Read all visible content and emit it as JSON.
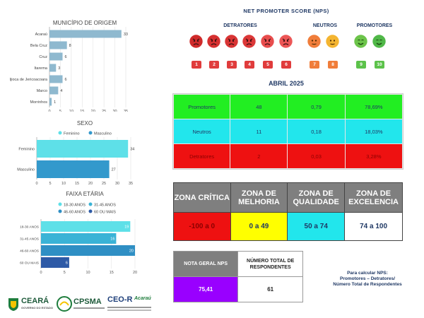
{
  "charts": {
    "municipio": {
      "title": "MUNICÍPIO DE ORIGEM",
      "categories": [
        "Acaraú",
        "Bela Cruz",
        "Cruz",
        "Itarema",
        "Ijioca de Jericoacoara",
        "Marco",
        "Morrinhos"
      ],
      "values": [
        33,
        8,
        6,
        3,
        6,
        4,
        1
      ],
      "ticks": [
        "0",
        "5",
        "10",
        "15",
        "20",
        "25",
        "30",
        "35"
      ],
      "color": "#8fb9cf"
    },
    "sexo": {
      "title": "SEXO",
      "legend": [
        {
          "label": "Feminino",
          "color": "#5ee0e8"
        },
        {
          "label": "Masculino",
          "color": "#3399cc"
        }
      ],
      "categories": [
        "Feminino",
        "Masculino"
      ],
      "values": [
        34,
        27
      ],
      "ticks": [
        "0",
        "5",
        "10",
        "15",
        "20",
        "25",
        "30",
        "35"
      ]
    },
    "faixa": {
      "title": "FAIXA ETÁRIA",
      "legend": [
        {
          "label": "18-30 ANOS",
          "color": "#5ee0e8"
        },
        {
          "label": "31-45 ANOS",
          "color": "#3ab3d6"
        },
        {
          "label": "46-60 ANOS",
          "color": "#2f8fc4"
        },
        {
          "label": "60 OU MAIS",
          "color": "#2e5aa6"
        }
      ],
      "categories": [
        "18-30 ANOS",
        "31-45 ANOS",
        "46-60 ANOS",
        "60 OU MAIS"
      ],
      "values": [
        19,
        16,
        20,
        6
      ],
      "ticks": [
        "0",
        "5",
        "10",
        "15",
        "20"
      ]
    }
  },
  "chart_data": [
    {
      "type": "bar",
      "title": "MUNICÍPIO DE ORIGEM",
      "categories": [
        "Acaraú",
        "Bela Cruz",
        "Cruz",
        "Itarema",
        "Ijioca de Jericoacoara",
        "Marco",
        "Morrinhos"
      ],
      "values": [
        33,
        8,
        6,
        3,
        6,
        4,
        1
      ],
      "xlim": [
        0,
        35
      ],
      "orientation": "horizontal"
    },
    {
      "type": "bar",
      "title": "SEXO",
      "categories": [
        "Feminino",
        "Masculino"
      ],
      "values": [
        34,
        27
      ],
      "xlim": [
        0,
        35
      ],
      "orientation": "horizontal",
      "legend": "top"
    },
    {
      "type": "bar",
      "title": "FAIXA ETÁRIA",
      "categories": [
        "18-30 ANOS",
        "31-45 ANOS",
        "46-60 ANOS",
        "60 OU MAIS"
      ],
      "values": [
        19,
        16,
        20,
        6
      ],
      "xlim": [
        0,
        20
      ],
      "orientation": "horizontal",
      "legend": "top"
    }
  ],
  "nps": {
    "title": "NET PROMOTER SCORE (NPS)",
    "groups": {
      "detratores": "DETRATORES",
      "neutros": "NEUTROS",
      "promotores": "PROMOTORES"
    },
    "scores": [
      "1",
      "2",
      "3",
      "4",
      "5",
      "6",
      "7",
      "8",
      "9",
      "10"
    ],
    "period": "ABRIL 2025",
    "colors": {
      "detrator": "#e03c3c",
      "neutro": "#f07d3a",
      "promotor": "#5cc24a"
    }
  },
  "summary": {
    "rows": [
      {
        "label": "Promotores",
        "count": "48",
        "ratio": "0,79",
        "percent": "78,69%",
        "color": "#22ee22"
      },
      {
        "label": "Neutros",
        "count": "11",
        "ratio": "0,18",
        "percent": "18,03%",
        "color": "#22e6ec"
      },
      {
        "label": "Detratores",
        "count": "2",
        "ratio": "0,03",
        "percent": "3,28%",
        "color": "#ee1111"
      }
    ]
  },
  "zones": {
    "headers": [
      "ZONA CRÍTICA",
      "ZONA DE MELHORIA",
      "ZONA DE QUALIDADE",
      "ZONA DE EXCELENCIA"
    ],
    "ranges": [
      "-100 a 0",
      "0 a 49",
      "50 a 74",
      "74 a 100"
    ],
    "colors": [
      "#ee1111",
      "#ffff00",
      "#22e6ec",
      "#ffffff"
    ]
  },
  "score": {
    "label": "NOTA GERAL NPS",
    "value": "75,41",
    "total_label": "NÚMERO TOTAL DE RESPONDENTES",
    "total_value": "61",
    "value_color": "#9900ff"
  },
  "formula": {
    "line1": "Para calcular NPS:",
    "line2": "Promotores – Detratores/",
    "line3": "Número Total de Respondentes"
  },
  "logos": {
    "ceara": "CEARÁ",
    "ceara_sub": "GOVERNO DO ESTADO",
    "cpsma": "CPSMA",
    "ceo": "CEO-R",
    "ceo_city": "Acaraú"
  }
}
